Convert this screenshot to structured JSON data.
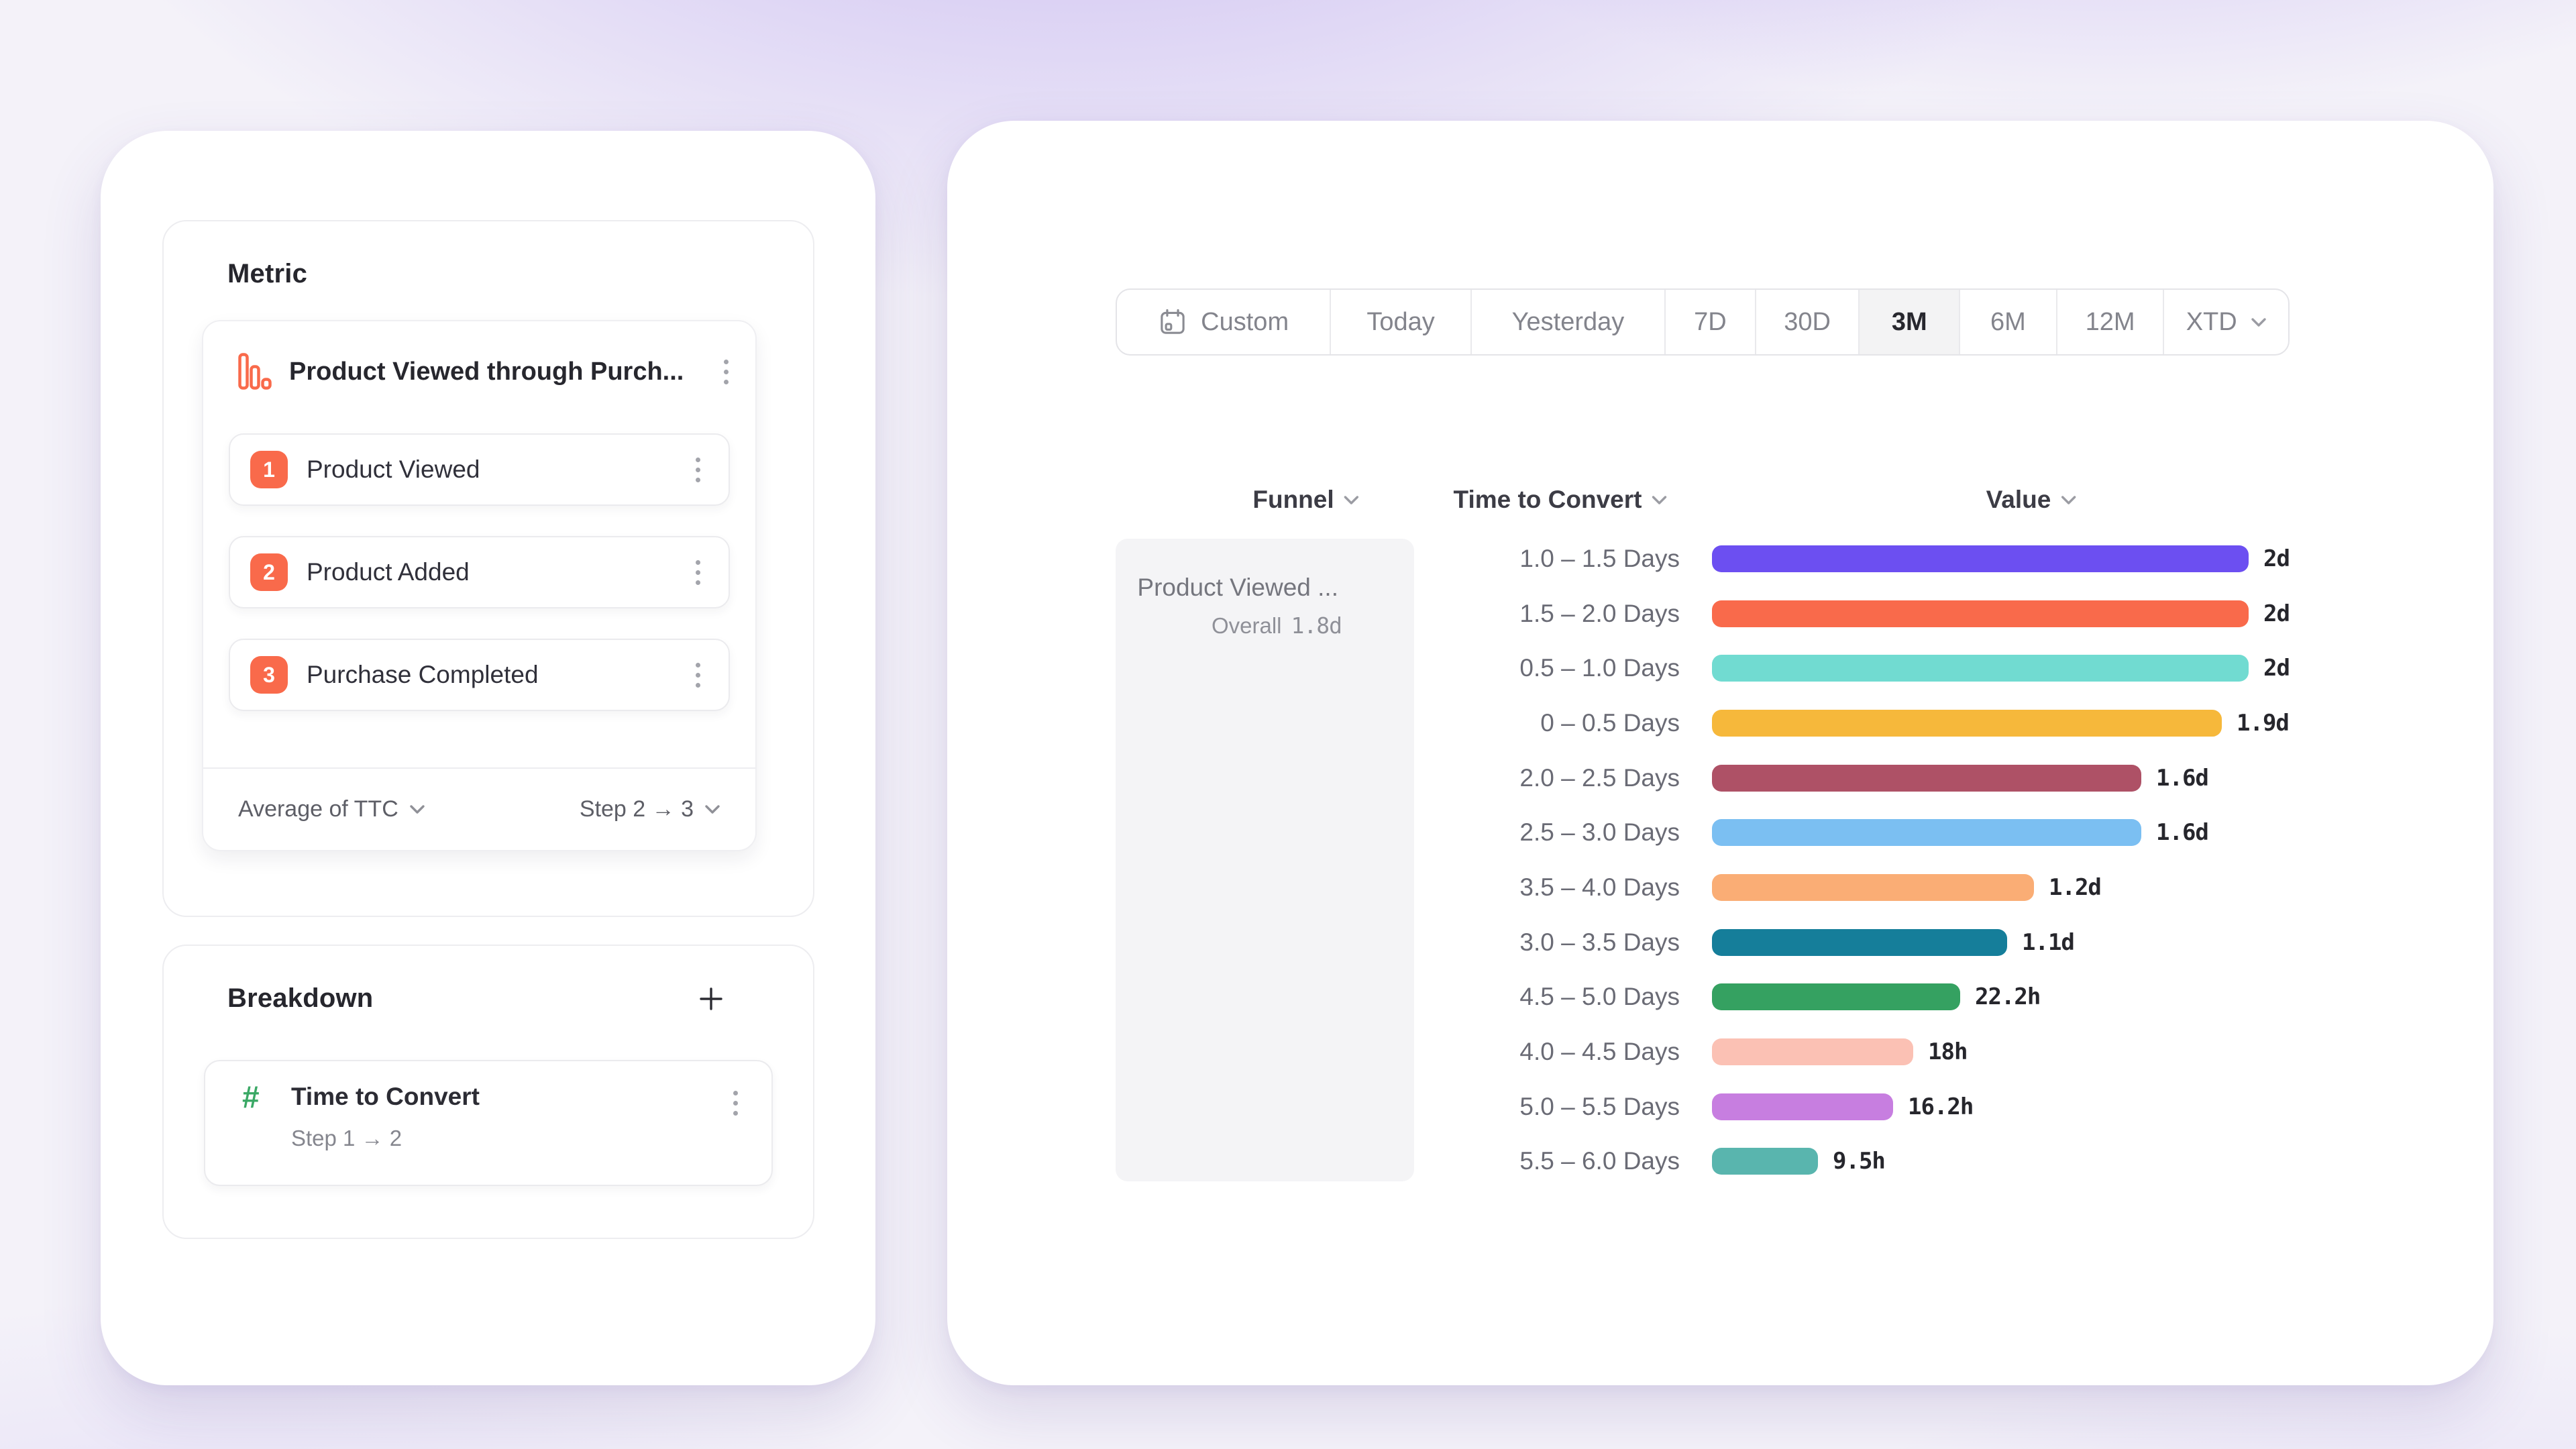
{
  "colors": {
    "accent_orange": "#F96A4B",
    "breakdown_green": "#3AA865",
    "background_purple": "#BFA9EE",
    "selected_segment_bg": "#F3F3F4"
  },
  "query_builder": {
    "metric": {
      "heading": "Metric",
      "funnel": {
        "icon": "funnel-bars-icon",
        "name": "Product Viewed through Purch...",
        "steps": [
          {
            "num": "1",
            "label": "Product Viewed"
          },
          {
            "num": "2",
            "label": "Product Added"
          },
          {
            "num": "3",
            "label": "Purchase Completed"
          }
        ],
        "aggregation": "Average of TTC",
        "step_range": "Step 2 → 3"
      }
    },
    "breakdown": {
      "heading": "Breakdown",
      "item": {
        "icon_glyph": "#",
        "name": "Time to Convert",
        "subtitle": "Step 1 → 2"
      }
    }
  },
  "report": {
    "date_range": {
      "options": [
        {
          "label": "Custom",
          "icon": "calendar"
        },
        {
          "label": "Today"
        },
        {
          "label": "Yesterday"
        },
        {
          "label": "7D"
        },
        {
          "label": "30D"
        },
        {
          "label": "3M",
          "selected": true
        },
        {
          "label": "6M"
        },
        {
          "label": "12M"
        },
        {
          "label": "XTD",
          "chevron": true
        }
      ],
      "selected": "3M"
    },
    "columns": [
      {
        "label": "Funnel"
      },
      {
        "label": "Time to Convert"
      },
      {
        "label": "Value"
      }
    ],
    "funnel_cell": {
      "name": "Product Viewed ...",
      "overall_label": "Overall",
      "overall_value": "1.8d"
    }
  },
  "chart_data": {
    "type": "bar",
    "orientation": "horizontal",
    "xlabel": "Value",
    "ylabel": "Time to Convert",
    "xlim": [
      0,
      2
    ],
    "unit": "days",
    "grid": false,
    "categories": [
      "1.0 – 1.5 Days",
      "1.5 – 2.0 Days",
      "0.5 – 1.0 Days",
      "0 – 0.5 Days",
      "2.0 – 2.5 Days",
      "2.5 – 3.0 Days",
      "3.5 – 4.0 Days",
      "3.0 – 3.5 Days",
      "4.5 – 5.0 Days",
      "4.0 – 4.5 Days",
      "5.0 – 5.5 Days",
      "5.5 – 6.0 Days"
    ],
    "values_days": [
      2,
      2,
      2,
      1.9,
      1.6,
      1.6,
      1.2,
      1.1,
      0.925,
      0.75,
      0.675,
      0.396
    ],
    "value_labels": [
      "2d",
      "2d",
      "2d",
      "1.9d",
      "1.6d",
      "1.6d",
      "1.2d",
      "1.1d",
      "22.2h",
      "18h",
      "16.2h",
      "9.5h"
    ],
    "colors": [
      "#6C4FF1",
      "#F96A4B",
      "#71DBD1",
      "#F6B83B",
      "#AE5166",
      "#7BBFF2",
      "#FAAD75",
      "#157E9A",
      "#35A161",
      "#FBC1B4",
      "#C77EE0",
      "#59B5AE"
    ]
  }
}
